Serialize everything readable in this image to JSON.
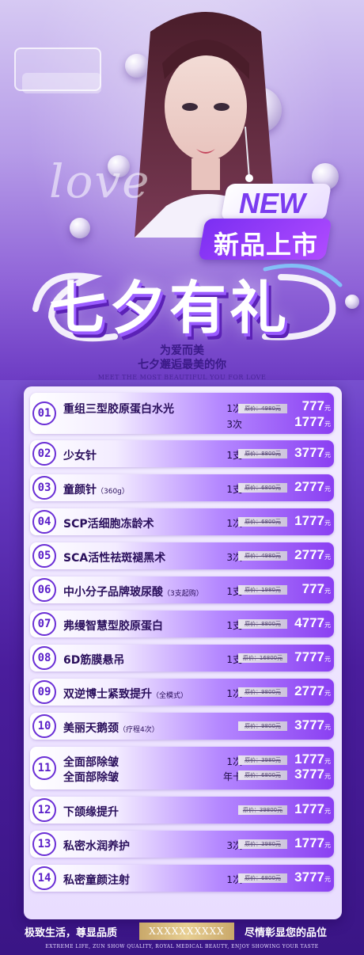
{
  "hero": {
    "script_word": "love",
    "badge_new": "NEW",
    "badge_launch": "新品上市",
    "title": "七夕有礼",
    "subtitle_line1": "为爱而美",
    "subtitle_line2": "七夕邂逅最美的你",
    "subtitle_en": "MEET THE MOST BEAUTIFUL YOU FOR LOVE"
  },
  "colors": {
    "accent": "#7b2ff2",
    "deep": "#3a1585",
    "gold": "#c9a86a"
  },
  "items": [
    {
      "num": "01",
      "name": "重组三型胶原蛋白水光",
      "note": "",
      "lines": [
        {
          "qty": "1次",
          "orig": "原价：4980元",
          "price": "777",
          "unit": "元"
        },
        {
          "qty": "3次",
          "orig": "",
          "price": "1777",
          "unit": "元"
        }
      ]
    },
    {
      "num": "02",
      "name": "少女针",
      "note": "",
      "lines": [
        {
          "qty": "1支",
          "orig": "原价：8800元",
          "price": "3777",
          "unit": "元"
        }
      ]
    },
    {
      "num": "03",
      "name": "童颜针",
      "note": "（360g）",
      "lines": [
        {
          "qty": "1支",
          "orig": "原价：6800元",
          "price": "2777",
          "unit": "元"
        }
      ]
    },
    {
      "num": "04",
      "name": "SCP活细胞冻龄术",
      "note": "",
      "lines": [
        {
          "qty": "1次",
          "orig": "原价：6800元",
          "price": "1777",
          "unit": "元"
        }
      ]
    },
    {
      "num": "05",
      "name": "SCA活性祛斑褪黑术",
      "note": "",
      "lines": [
        {
          "qty": "3次",
          "orig": "原价：4980元",
          "price": "2777",
          "unit": "元"
        }
      ]
    },
    {
      "num": "06",
      "name": "中小分子品牌玻尿酸",
      "note": "（3支起购）",
      "lines": [
        {
          "qty": "1支",
          "orig": "原价：1980元",
          "price": "777",
          "unit": "元"
        }
      ]
    },
    {
      "num": "07",
      "name": "弗缦智慧型胶原蛋白",
      "note": "",
      "lines": [
        {
          "qty": "1支",
          "orig": "原价：8800元",
          "price": "4777",
          "unit": "元"
        }
      ]
    },
    {
      "num": "08",
      "name": "6D筋膜悬吊",
      "note": "",
      "lines": [
        {
          "qty": "1支",
          "orig": "原价：16800元",
          "price": "7777",
          "unit": "元"
        }
      ]
    },
    {
      "num": "09",
      "name": "双逆博士紧致提升",
      "note": "（全模式）",
      "lines": [
        {
          "qty": "1次",
          "orig": "原价：9800元",
          "price": "2777",
          "unit": "元"
        }
      ]
    },
    {
      "num": "10",
      "name": "美丽天鹅颈",
      "note": "（疗程4次）",
      "lines": [
        {
          "qty": "",
          "orig": "原价：9800元",
          "price": "3777",
          "unit": "元"
        }
      ]
    },
    {
      "num": "11",
      "name": "全面部除皱",
      "name2": "全面部除皱",
      "note": "",
      "lines": [
        {
          "qty": "1次",
          "orig": "原价：3980元",
          "price": "1777",
          "unit": "元"
        },
        {
          "qty": "年卡",
          "orig": "原价：6800元",
          "price": "3777",
          "unit": "元"
        }
      ]
    },
    {
      "num": "12",
      "name": "下颌缘提升",
      "note": "",
      "lines": [
        {
          "qty": "",
          "orig": "原价：39800元",
          "price": "1777",
          "unit": "元"
        }
      ]
    },
    {
      "num": "13",
      "name": "私密水润养护",
      "note": "",
      "lines": [
        {
          "qty": "3次",
          "orig": "原价：3980元",
          "price": "1777",
          "unit": "元"
        }
      ]
    },
    {
      "num": "14",
      "name": "私密童颜注射",
      "note": "",
      "lines": [
        {
          "qty": "1次",
          "orig": "原价：6800元",
          "price": "3777",
          "unit": "元"
        }
      ]
    }
  ],
  "footer": {
    "left": "极致生活，尊显品质",
    "brand": "XXXXXXXXXX",
    "right": "尽情彰显您的品位",
    "english": "EXTREME LIFE, ZUN SHOW QUALITY, ROYAL MEDICAL BEAUTY, ENJOY SHOWING YOUR TASTE"
  }
}
